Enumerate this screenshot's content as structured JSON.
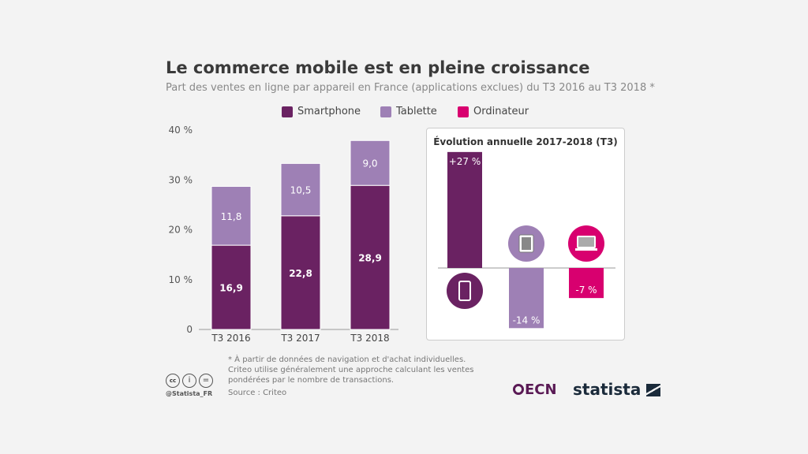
{
  "title": "Le commerce mobile est en pleine croissance",
  "subtitle": "Part des ventes en ligne par appareil en France (applications exclues) du T3 2016 au T3 2018 *",
  "legend": [
    {
      "label": "Smartphone",
      "color": "#6a2262"
    },
    {
      "label": "Tablette",
      "color": "#9e80b5"
    },
    {
      "label": "Ordinateur",
      "color": "#d8006f"
    }
  ],
  "chart_data": [
    {
      "type": "bar",
      "stacked": true,
      "categories": [
        "T3 2016",
        "T3 2017",
        "T3 2018"
      ],
      "series": [
        {
          "name": "Smartphone",
          "values": [
            16.9,
            22.8,
            28.9
          ],
          "labels": [
            "16,9",
            "22,8",
            "28,9"
          ]
        },
        {
          "name": "Tablette",
          "values": [
            11.8,
            10.5,
            9.0
          ],
          "labels": [
            "11,8",
            "10,5",
            "9,0"
          ]
        }
      ],
      "ylim": [
        0,
        40
      ],
      "yticks": [
        "0",
        "10 %",
        "20 %",
        "30 %",
        "40 %"
      ],
      "ytick_values": [
        0,
        10,
        20,
        30,
        40
      ],
      "grid": false
    },
    {
      "type": "bar",
      "title": "Évolution annuelle 2017-2018 (T3)",
      "categories": [
        "Smartphone",
        "Tablette",
        "Ordinateur"
      ],
      "values": [
        27,
        -14,
        -7
      ],
      "labels": [
        "+27 %",
        "-14 %",
        "-7 %"
      ],
      "icons": [
        "smartphone-icon",
        "tablet-icon",
        "laptop-icon"
      ]
    }
  ],
  "footer": {
    "note_lines": [
      "* À partir de données de navigation et d'achat individuelles.",
      "Criteo utilise généralement une approche calculant les ventes",
      "pondérées par le nombre de transactions."
    ],
    "source": "Source : Criteo",
    "handle": "@Statista_FR",
    "ecn": "ECN",
    "statista": "statista"
  }
}
